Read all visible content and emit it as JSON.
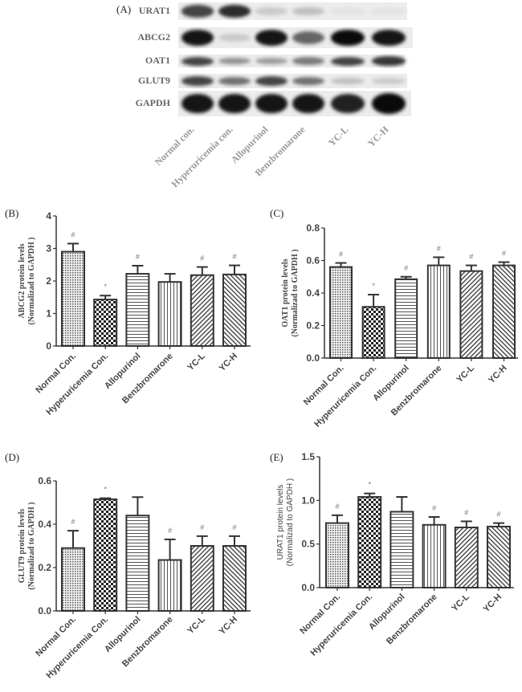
{
  "panel_a": {
    "label": "(A)",
    "proteins": [
      "URAT1",
      "ABCG2",
      "OAT1",
      "GLUT9",
      "GAPDH"
    ],
    "lanes": [
      "Normal con.",
      "Hyperuricemia con.",
      "Allopurinol",
      "Benzbromarone",
      "YC-L",
      "YC-H"
    ],
    "band_intensity": {
      "URAT1": [
        0.75,
        0.85,
        0.15,
        0.2,
        0.05,
        0.05
      ],
      "ABCG2": [
        0.95,
        0.15,
        0.95,
        0.6,
        1.0,
        0.95
      ],
      "OAT1": [
        0.75,
        0.4,
        0.35,
        0.5,
        0.75,
        0.8
      ],
      "GLUT9": [
        0.75,
        0.55,
        0.75,
        0.55,
        0.2,
        0.15
      ],
      "GAPDH": [
        0.95,
        0.95,
        0.95,
        0.95,
        0.9,
        1.0
      ]
    }
  },
  "chart_data": [
    {
      "panel": "(B)",
      "type": "bar",
      "title": "",
      "ylabel": "ABCG2 protein levels (Normalizad to GAPDH )",
      "ylabel_lines": [
        "ABCG2 protein levels",
        "(Normalizad to GAPDH )"
      ],
      "xlabel": "",
      "categories": [
        "Normal  Con.",
        "Hyperuricemia  Con.",
        "Allopurinol",
        "Benzbromarone",
        "YC-L",
        "YC-H"
      ],
      "values": [
        2.9,
        1.43,
        2.22,
        1.97,
        2.18,
        2.2
      ],
      "error_upper": [
        3.15,
        1.55,
        2.47,
        2.22,
        2.43,
        2.48
      ],
      "annotations": [
        "#",
        "*",
        "#",
        "",
        "#",
        "#"
      ],
      "ylim": [
        0,
        4
      ],
      "yticks": [
        "0",
        "1",
        "2",
        "3",
        "4"
      ],
      "grid": false
    },
    {
      "panel": "(C)",
      "type": "bar",
      "title": "",
      "ylabel": "OAT1 protein levels (Normalizad to GAPDH )",
      "ylabel_lines": [
        "OAT1 protein levels",
        "(Normalizad to GAPDH )"
      ],
      "xlabel": "",
      "categories": [
        "Normal  Con.",
        "Hyperuricemia  Con.",
        "Allopurinol",
        "Benzbromarone",
        "YC-L",
        "YC-H"
      ],
      "values": [
        0.56,
        0.315,
        0.485,
        0.57,
        0.535,
        0.57
      ],
      "error_upper": [
        0.585,
        0.39,
        0.5,
        0.62,
        0.57,
        0.59
      ],
      "annotations": [
        "#",
        "*",
        "#",
        "#",
        "#",
        "#"
      ],
      "ylim": [
        0,
        0.8
      ],
      "yticks": [
        "0.0",
        "0.2",
        "0.4",
        "0.6",
        "0.8"
      ],
      "grid": false
    },
    {
      "panel": "(D)",
      "type": "bar",
      "title": "",
      "ylabel": "GLUT9 protein levels (Normalizad to GAPDH )",
      "ylabel_lines": [
        "GLUT9 protein levels",
        "(Normalizad to GAPDH )"
      ],
      "xlabel": "",
      "categories": [
        "Normal  Con.",
        "Hyperuricemia  Con.",
        "Allopurinol",
        "Benzbromarone",
        "YC-L",
        "YC-H"
      ],
      "values": [
        0.29,
        0.515,
        0.44,
        0.235,
        0.3,
        0.3
      ],
      "error_upper": [
        0.37,
        0.52,
        0.525,
        0.33,
        0.345,
        0.345
      ],
      "annotations": [
        "#",
        "*",
        "",
        "#",
        "#",
        "#"
      ],
      "ylim": [
        0,
        0.6
      ],
      "yticks": [
        "0.0",
        "0.2",
        "0.4",
        "0.6"
      ],
      "grid": false
    },
    {
      "panel": "(E)",
      "type": "bar",
      "title": "",
      "ylabel": "URAT1 protein levels (Normalizad to GAPDH )",
      "ylabel_lines": [
        "URAT1 protein levels",
        "(Normalizad to GAPDH )"
      ],
      "xlabel": "",
      "categories": [
        "Normal  Con.",
        "Hyperuricemia  Con.",
        "Allopurinol",
        "Benzbromarone",
        "YC-L",
        "YC-H"
      ],
      "values": [
        0.74,
        1.04,
        0.87,
        0.72,
        0.69,
        0.7
      ],
      "error_upper": [
        0.83,
        1.08,
        1.04,
        0.81,
        0.76,
        0.74
      ],
      "annotations": [
        "#",
        "*",
        "",
        "#",
        "#",
        "#"
      ],
      "ylim": [
        0,
        1.5
      ],
      "yticks": [
        "0.0",
        "0.5",
        "1.0",
        "1.5"
      ],
      "grid": false
    }
  ]
}
